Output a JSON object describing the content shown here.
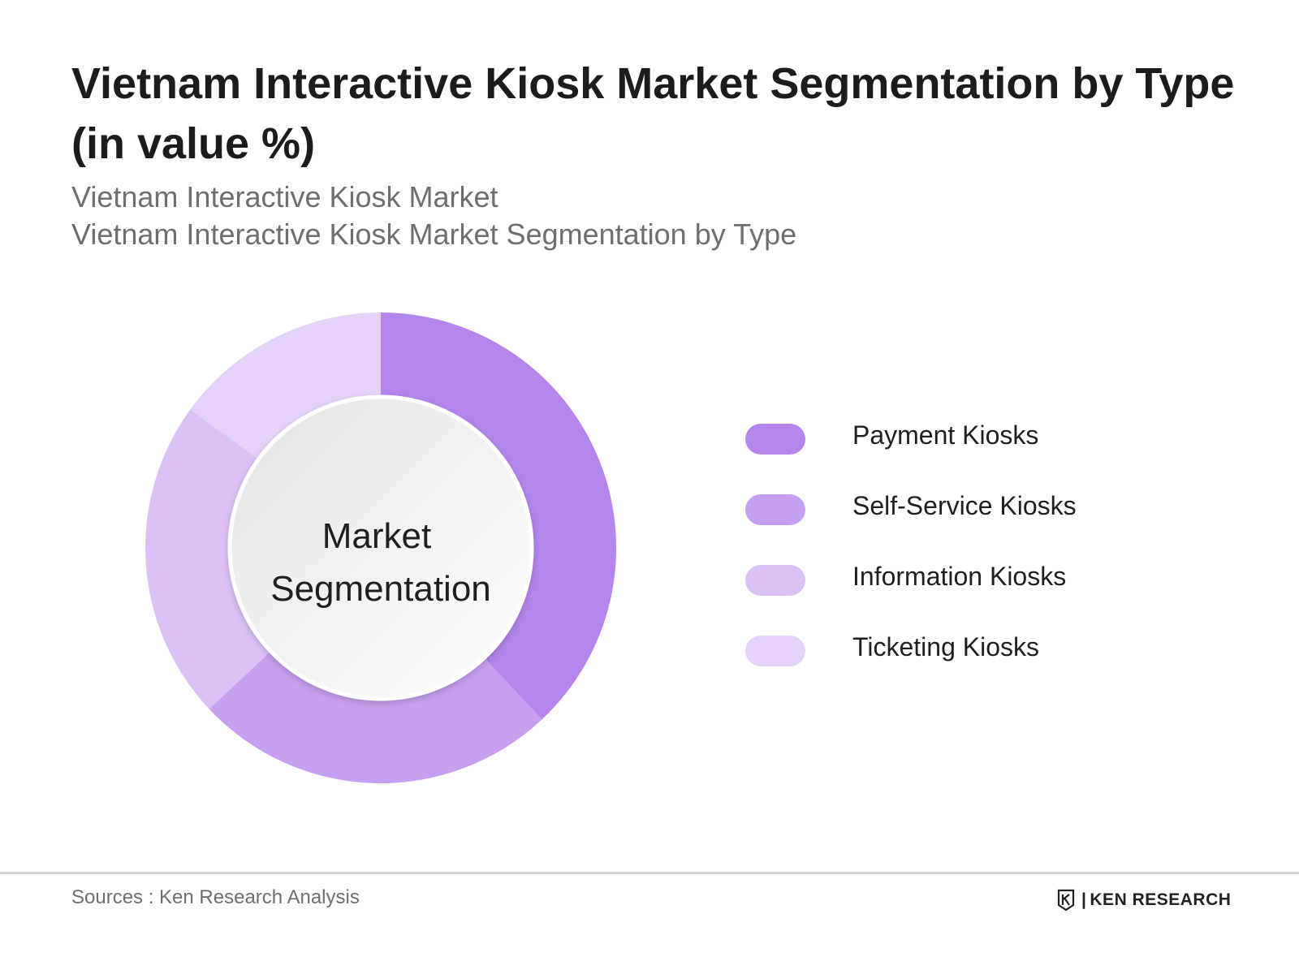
{
  "header": {
    "title": "Vietnam Interactive Kiosk Market Segmentation by Type (in value %)",
    "subtitle_line1": "Vietnam Interactive Kiosk Market",
    "subtitle_line2": "Vietnam Interactive Kiosk Market Segmentation by Type"
  },
  "chart_data": {
    "type": "pie",
    "donut": true,
    "center_label": [
      "Market",
      "Segmentation"
    ],
    "categories": [
      "Payment Kiosks",
      "Self-Service Kiosks",
      "Information Kiosks",
      "Ticketing Kiosks"
    ],
    "values": [
      38,
      25,
      22,
      15
    ],
    "colors": [
      "#b485eb",
      "#c79ff0",
      "#dbc1f6",
      "#e5d2f8"
    ],
    "legend_position": "right"
  },
  "footer": {
    "source": "Sources : Ken Research Analysis",
    "brand": "KEN RESEARCH",
    "brand_separator": "|"
  }
}
